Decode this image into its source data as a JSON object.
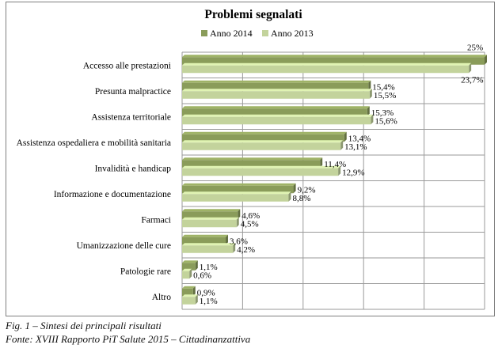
{
  "chart_data": {
    "type": "bar",
    "orientation": "horizontal",
    "title": "Problemi segnalati",
    "xlabel": "",
    "ylabel": "",
    "xlim": [
      0,
      25
    ],
    "grid": true,
    "legend": "top-center",
    "categories": [
      "Accesso alle prestazioni",
      "Presunta malpractice",
      "Assistenza territoriale",
      "Assistenza ospedaliera e mobilità sanitaria",
      "Invalidità  e handicap",
      "Informazione e documentazione",
      "Farmaci",
      "Umanizzazione delle cure",
      "Patologie rare",
      "Altro"
    ],
    "series": [
      {
        "name": "Anno 2014",
        "color": "#8a9c5a",
        "values": [
          25,
          15.4,
          15.3,
          13.4,
          11.4,
          9.2,
          4.6,
          3.6,
          1.1,
          0.9
        ],
        "labels": [
          "25%",
          "15,4%",
          "15,3%",
          "13,4%",
          "11,4%",
          "9,2%",
          "4,6%",
          "3,6%",
          "1,1%",
          "0,9%"
        ]
      },
      {
        "name": "Anno 2013",
        "color": "#c3d39c",
        "values": [
          23.7,
          15.5,
          15.6,
          13.1,
          12.9,
          8.8,
          4.5,
          4.2,
          0.6,
          1.1
        ],
        "labels": [
          "23,7%",
          "15,5%",
          "15,6%",
          "13,1%",
          "12,9%",
          "8,8%",
          "4,5%",
          "4,2%",
          "0,6%",
          "1,1%"
        ]
      }
    ]
  },
  "captions": {
    "figure": "Fig. 1 – Sintesi dei principali risultati",
    "source": "Fonte: XVIII Rapporto PiT Salute 2015 – Cittadinanzattiva"
  }
}
